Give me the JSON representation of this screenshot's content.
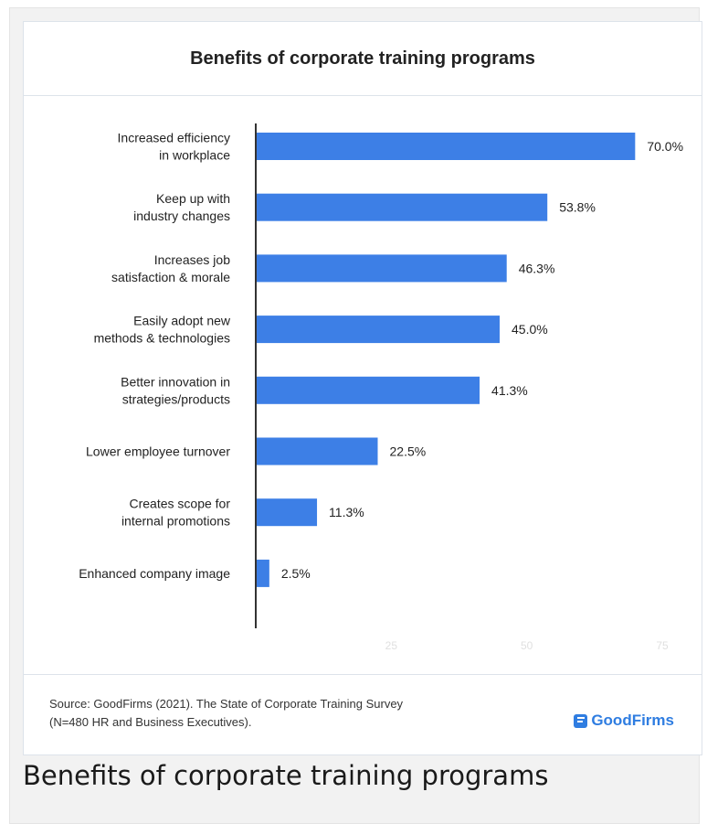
{
  "figure": {
    "caption": "Benefits of corporate training programs"
  },
  "footer": {
    "source_line1": "Source: GoodFirms (2021). The State of Corporate Training Survey",
    "source_line2": "(N=480 HR and Business Executives).",
    "logo_text": "GoodFirms"
  },
  "colors": {
    "bar": "#3d7fe6",
    "axis": "#333333",
    "tick_label": "#e0e0e0",
    "brand": "#2f7de1"
  },
  "chart_data": {
    "type": "bar",
    "orientation": "horizontal",
    "title": "Benefits of corporate training programs",
    "categories": [
      [
        "Increased efficiency",
        "in workplace"
      ],
      [
        "Keep up with",
        "industry changes"
      ],
      [
        "Increases job",
        "satisfaction & morale"
      ],
      [
        "Easily adopt new",
        "methods & technologies"
      ],
      [
        "Better innovation in",
        "strategies/products"
      ],
      [
        "Lower employee turnover"
      ],
      [
        "Creates scope for",
        "internal promotions"
      ],
      [
        "Enhanced company image"
      ]
    ],
    "values": [
      70.0,
      53.8,
      46.3,
      45.0,
      41.3,
      22.5,
      11.3,
      2.5
    ],
    "value_labels": [
      "70.0%",
      "53.8%",
      "46.3%",
      "45.0%",
      "41.3%",
      "22.5%",
      "11.3%",
      "2.5%"
    ],
    "xlim": [
      0,
      75
    ],
    "xticks": [
      25,
      50,
      75
    ],
    "grid": false,
    "xlabel": "",
    "ylabel": ""
  }
}
